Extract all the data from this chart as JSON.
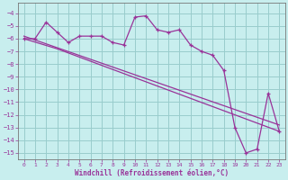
{
  "xlabel": "Windchill (Refroidissement éolien,°C)",
  "bg_color": "#c8eeee",
  "line_color": "#993399",
  "grid_color": "#99cccc",
  "xlim": [
    -0.5,
    23.5
  ],
  "ylim": [
    -15.5,
    -3.2
  ],
  "yticks": [
    -4,
    -5,
    -6,
    -7,
    -8,
    -9,
    -10,
    -11,
    -12,
    -13,
    -14,
    -15
  ],
  "xticks": [
    0,
    1,
    2,
    3,
    4,
    5,
    6,
    7,
    8,
    9,
    10,
    11,
    12,
    13,
    14,
    15,
    16,
    17,
    18,
    19,
    20,
    21,
    22,
    23
  ],
  "series1_x": [
    0,
    1,
    2,
    3,
    4,
    5,
    6,
    7,
    8,
    9,
    10,
    11,
    12,
    13,
    14,
    15,
    16,
    17,
    18,
    19,
    20,
    21,
    22,
    23
  ],
  "series1_y": [
    -6.0,
    -6.0,
    -4.7,
    -5.5,
    -6.3,
    -5.8,
    -5.8,
    -5.8,
    -6.3,
    -6.5,
    -4.3,
    -4.2,
    -5.3,
    -5.5,
    -5.3,
    -6.5,
    -7.0,
    -7.3,
    -8.5,
    -13.0,
    -15.0,
    -14.7,
    -10.3,
    -13.3
  ],
  "trend1_x": [
    0,
    23
  ],
  "trend1_y": [
    -5.8,
    -12.8
  ],
  "trend2_x": [
    0,
    3,
    23
  ],
  "trend2_y": [
    -6.0,
    -6.8,
    -13.3
  ]
}
